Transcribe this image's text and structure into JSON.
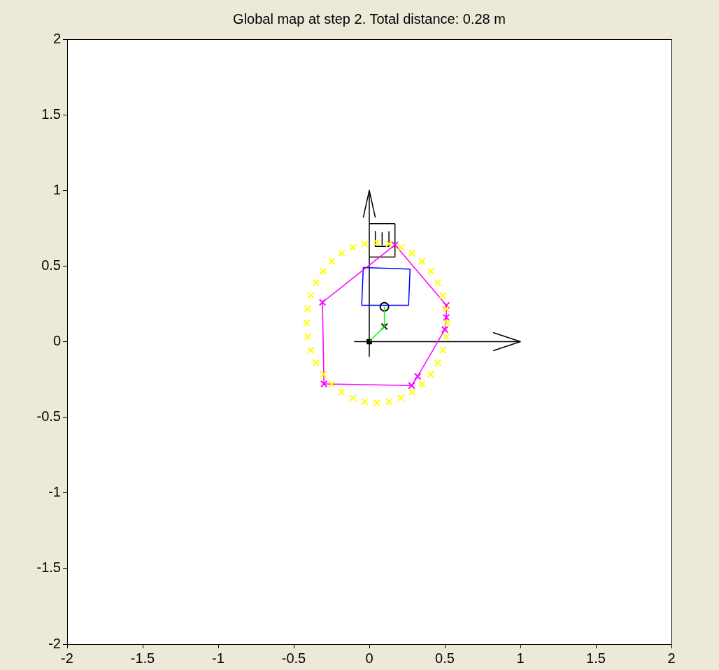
{
  "chart_data": {
    "type": "line",
    "title": "Global map at step 2. Total distance: 0.28 m",
    "xlim": [
      -2,
      2
    ],
    "ylim": [
      -2,
      2
    ],
    "xticks": [
      -2,
      -1.5,
      -1,
      -0.5,
      0,
      0.5,
      1,
      1.5,
      2
    ],
    "yticks": [
      -2,
      -1.5,
      -1,
      -0.5,
      0,
      0.5,
      1,
      1.5,
      2
    ],
    "legend": false,
    "line_style": "solid",
    "marker": "none",
    "series": [
      {
        "type": "scatter",
        "color": "#ffff00",
        "marker": "cross",
        "x": [
          0.515,
          0.508,
          0.487,
          0.453,
          0.406,
          0.349,
          0.283,
          0.209,
          0.131,
          0.05,
          -0.031,
          -0.109,
          -0.183,
          -0.249,
          -0.306,
          -0.353,
          -0.387,
          -0.408,
          -0.415,
          -0.408,
          -0.387,
          -0.353,
          -0.306,
          -0.249,
          -0.183,
          -0.109,
          -0.031,
          0.05,
          0.131,
          0.209,
          0.283,
          0.349,
          0.406,
          0.453,
          0.487,
          0.508
        ],
        "values": [
          0.125,
          0.217,
          0.306,
          0.39,
          0.466,
          0.531,
          0.584,
          0.623,
          0.647,
          0.655,
          0.647,
          0.623,
          0.584,
          0.531,
          0.466,
          0.39,
          0.306,
          0.217,
          0.125,
          0.033,
          -0.056,
          -0.14,
          -0.216,
          -0.281,
          -0.334,
          -0.373,
          -0.397,
          -0.405,
          -0.397,
          -0.373,
          -0.334,
          -0.281,
          -0.216,
          -0.14,
          -0.056,
          0.033
        ]
      },
      {
        "type": "scatter",
        "color": "#ff00ff",
        "marker": "cross",
        "x": [
          -0.31,
          0.17,
          0.51,
          0.51,
          0.5,
          0.32,
          0.28,
          -0.3
        ],
        "values": [
          0.26,
          0.64,
          0.24,
          0.16,
          0.08,
          -0.23,
          -0.29,
          -0.28
        ]
      },
      {
        "type": "line",
        "color": "#ff00ff",
        "x": [
          -0.31,
          0.17
        ],
        "values": [
          0.26,
          0.64
        ]
      },
      {
        "type": "line",
        "color": "#ff00ff",
        "x": [
          0.17,
          0.51
        ],
        "values": [
          0.64,
          0.24
        ]
      },
      {
        "type": "line",
        "color": "#ff00ff",
        "x": [
          0.51,
          0.51
        ],
        "values": [
          0.24,
          0.16
        ]
      },
      {
        "type": "line",
        "color": "#ff00ff",
        "x": [
          0.51,
          0.5
        ],
        "values": [
          0.16,
          0.08
        ]
      },
      {
        "type": "line",
        "color": "#ff00ff",
        "x": [
          0.5,
          0.32
        ],
        "values": [
          0.08,
          -0.23
        ]
      },
      {
        "type": "line",
        "color": "#ff00ff",
        "x": [
          0.32,
          0.28
        ],
        "values": [
          -0.23,
          -0.29
        ]
      },
      {
        "type": "line",
        "color": "#ff00ff",
        "x": [
          0.28,
          -0.3
        ],
        "values": [
          -0.29,
          -0.28
        ]
      },
      {
        "type": "line",
        "color": "#ff00ff",
        "x": [
          -0.3,
          -0.31
        ],
        "values": [
          -0.28,
          0.26
        ]
      },
      {
        "type": "line",
        "color": "#0000ff",
        "x": [
          -0.04,
          0.27
        ],
        "values": [
          0.49,
          0.48
        ]
      },
      {
        "type": "line",
        "color": "#0000ff",
        "x": [
          0.27,
          0.26
        ],
        "values": [
          0.48,
          0.24
        ]
      },
      {
        "type": "line",
        "color": "#0000ff",
        "x": [
          0.26,
          -0.05
        ],
        "values": [
          0.24,
          0.24
        ]
      },
      {
        "type": "line",
        "color": "#0000ff",
        "x": [
          -0.05,
          -0.04
        ],
        "values": [
          0.24,
          0.49
        ]
      },
      {
        "type": "line",
        "color": "#000000",
        "x": [
          -0.1,
          1
        ],
        "values": [
          0,
          0
        ]
      },
      {
        "type": "line",
        "color": "#000000",
        "x": [
          0.82,
          1,
          0.82
        ],
        "values": [
          0.06,
          0,
          -0.06
        ]
      },
      {
        "type": "line",
        "color": "#000000",
        "x": [
          0,
          0
        ],
        "values": [
          -0.1,
          1
        ]
      },
      {
        "type": "line",
        "color": "#000000",
        "x": [
          -0.04,
          0,
          0.04
        ],
        "values": [
          0.82,
          1,
          0.82
        ]
      },
      {
        "type": "line",
        "color": "#000000",
        "x": [
          0,
          0.17
        ],
        "values": [
          0.56,
          0.56
        ]
      },
      {
        "type": "line",
        "color": "#000000",
        "x": [
          0.17,
          0.17
        ],
        "values": [
          0.56,
          0.78
        ]
      },
      {
        "type": "line",
        "color": "#000000",
        "x": [
          0.17,
          0
        ],
        "values": [
          0.78,
          0.78
        ]
      },
      {
        "type": "line",
        "color": "#000000",
        "x": [
          0.04,
          0.04
        ],
        "values": [
          0.73,
          0.63
        ]
      },
      {
        "type": "line",
        "color": "#000000",
        "x": [
          0.04,
          0.13
        ],
        "values": [
          0.63,
          0.63
        ]
      },
      {
        "type": "line",
        "color": "#000000",
        "x": [
          0.13,
          0.13
        ],
        "values": [
          0.63,
          0.73
        ]
      },
      {
        "type": "line",
        "color": "#000000",
        "x": [
          0.085,
          0.085
        ],
        "values": [
          0.72,
          0.64
        ]
      },
      {
        "type": "line",
        "color": "#00ff00",
        "x": [
          0,
          0.1,
          0.1
        ],
        "values": [
          0,
          0.1,
          0.23
        ]
      },
      {
        "type": "scatter",
        "color": "#000000",
        "marker": "square",
        "x": [
          0
        ],
        "values": [
          0
        ]
      },
      {
        "type": "scatter",
        "color": "#000000",
        "marker": "cross",
        "x": [
          0.1
        ],
        "values": [
          0.1
        ]
      },
      {
        "type": "scatter",
        "color": "#000000",
        "marker": "circle",
        "x": [
          0.1
        ],
        "values": [
          0.23
        ]
      }
    ]
  }
}
